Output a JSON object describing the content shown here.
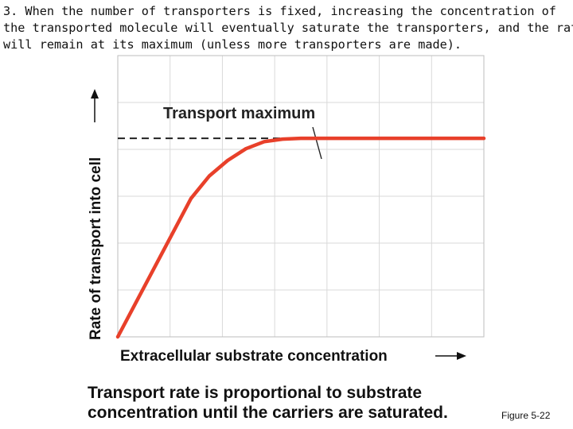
{
  "heading": {
    "lines": [
      "3.  When the number of transporters is fixed, increasing the concentration of",
      "the transported molecule will eventually saturate the transporters, and the rate",
      "will remain at its maximum (unless more transporters are made)."
    ]
  },
  "chart_data": {
    "type": "line",
    "title": "",
    "xlabel": "Extracellular substrate concentration",
    "ylabel": "Rate of transport into cell",
    "xlim": [
      0,
      1
    ],
    "ylim": [
      0,
      1
    ],
    "grid": true,
    "annotation": "Transport maximum",
    "series": [
      {
        "color": "#e8402a",
        "points": [
          [
            0.0,
            0.0
          ],
          [
            0.2,
            0.492
          ],
          [
            0.25,
            0.572
          ],
          [
            0.3,
            0.627
          ],
          [
            0.35,
            0.669
          ],
          [
            0.4,
            0.694
          ],
          [
            0.45,
            0.703
          ],
          [
            0.5,
            0.706
          ],
          [
            1.0,
            0.706
          ]
        ]
      }
    ],
    "reference_line": {
      "y": 0.706,
      "style": "dashed",
      "color": "#222222"
    }
  },
  "caption": {
    "lines": [
      "Transport rate is proportional to substrate",
      "concentration until the carriers are saturated."
    ]
  },
  "figure_ref": "Figure 5-22"
}
